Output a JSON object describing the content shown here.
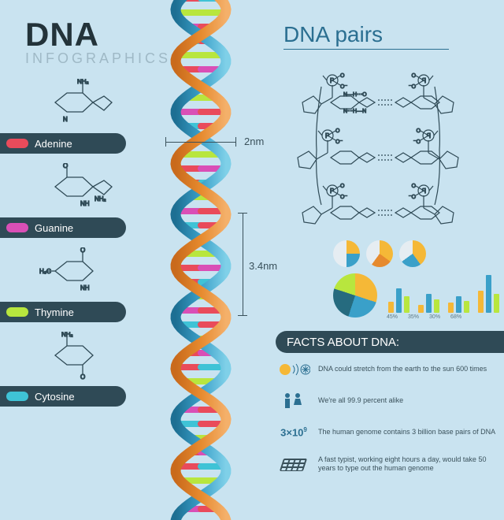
{
  "title": {
    "main": "DNA",
    "sub": "INFOGRAPHICS"
  },
  "right_title": "DNA pairs",
  "bases": [
    {
      "name": "Adenine",
      "pill_color": "#e94b5b"
    },
    {
      "name": "Guanine",
      "pill_color": "#d94fb6"
    },
    {
      "name": "Thymine",
      "pill_color": "#b8e63e"
    },
    {
      "name": "Cytosine",
      "pill_color": "#3fc3d6"
    }
  ],
  "molecule_stroke": "#2f4a56",
  "dimensions": {
    "width_label": "2nm",
    "pitch_label": "3.4nm"
  },
  "helix": {
    "strand_a_color": "#e68a2e",
    "strand_b_color": "#3aa0c9",
    "rung_colors": [
      "#e94b5b",
      "#b8e63e",
      "#d94fb6",
      "#3fc3d6",
      "#b8e63e",
      "#e94b5b"
    ]
  },
  "charts": {
    "pies": [
      {
        "a": 25,
        "c1": "#f5b837",
        "c2": "#3aa0c9",
        "bg": "#e6edf2"
      },
      {
        "a": 35,
        "c1": "#f5b837",
        "c2": "#e68a2e",
        "bg": "#e6edf2"
      },
      {
        "a": 40,
        "c1": "#f5b837",
        "c2": "#3aa0c9",
        "bg": "#e6edf2"
      }
    ],
    "big_pie": {
      "slices": [
        30,
        25,
        25,
        20
      ],
      "colors": [
        "#f5b837",
        "#3aa0c9",
        "#266b7f",
        "#b8e63e"
      ]
    },
    "bars": {
      "groups": [
        {
          "vals": [
            20,
            45,
            30
          ],
          "label": "45%"
        },
        {
          "vals": [
            15,
            35,
            25
          ],
          "label": "35%"
        },
        {
          "vals": [
            18,
            30,
            22
          ],
          "label": "30%"
        },
        {
          "vals": [
            40,
            68,
            35
          ],
          "label": "68%"
        }
      ],
      "colors": [
        "#f5b837",
        "#3aa0c9",
        "#b8e63e"
      ]
    }
  },
  "facts": {
    "header": "FACTS ABOUT DNA:",
    "items": [
      {
        "icon": "sun",
        "text": "DNA could stretch from the earth to the sun 600 times"
      },
      {
        "icon": "people",
        "text": "We're all 99.9 percent alike"
      },
      {
        "icon": "stat",
        "stat_html": "3×10",
        "stat_sup": "9",
        "text": "The human genome contains 3 billion base pairs of DNA"
      },
      {
        "icon": "keyboard",
        "text": "A fast typist, working eight hours a day, would take 50 years to type out the human genome"
      }
    ]
  },
  "colors": {
    "bg": "#c9e3f0",
    "dark": "#2f4a56",
    "text": "#3a515b",
    "accent": "#2b6f91"
  }
}
